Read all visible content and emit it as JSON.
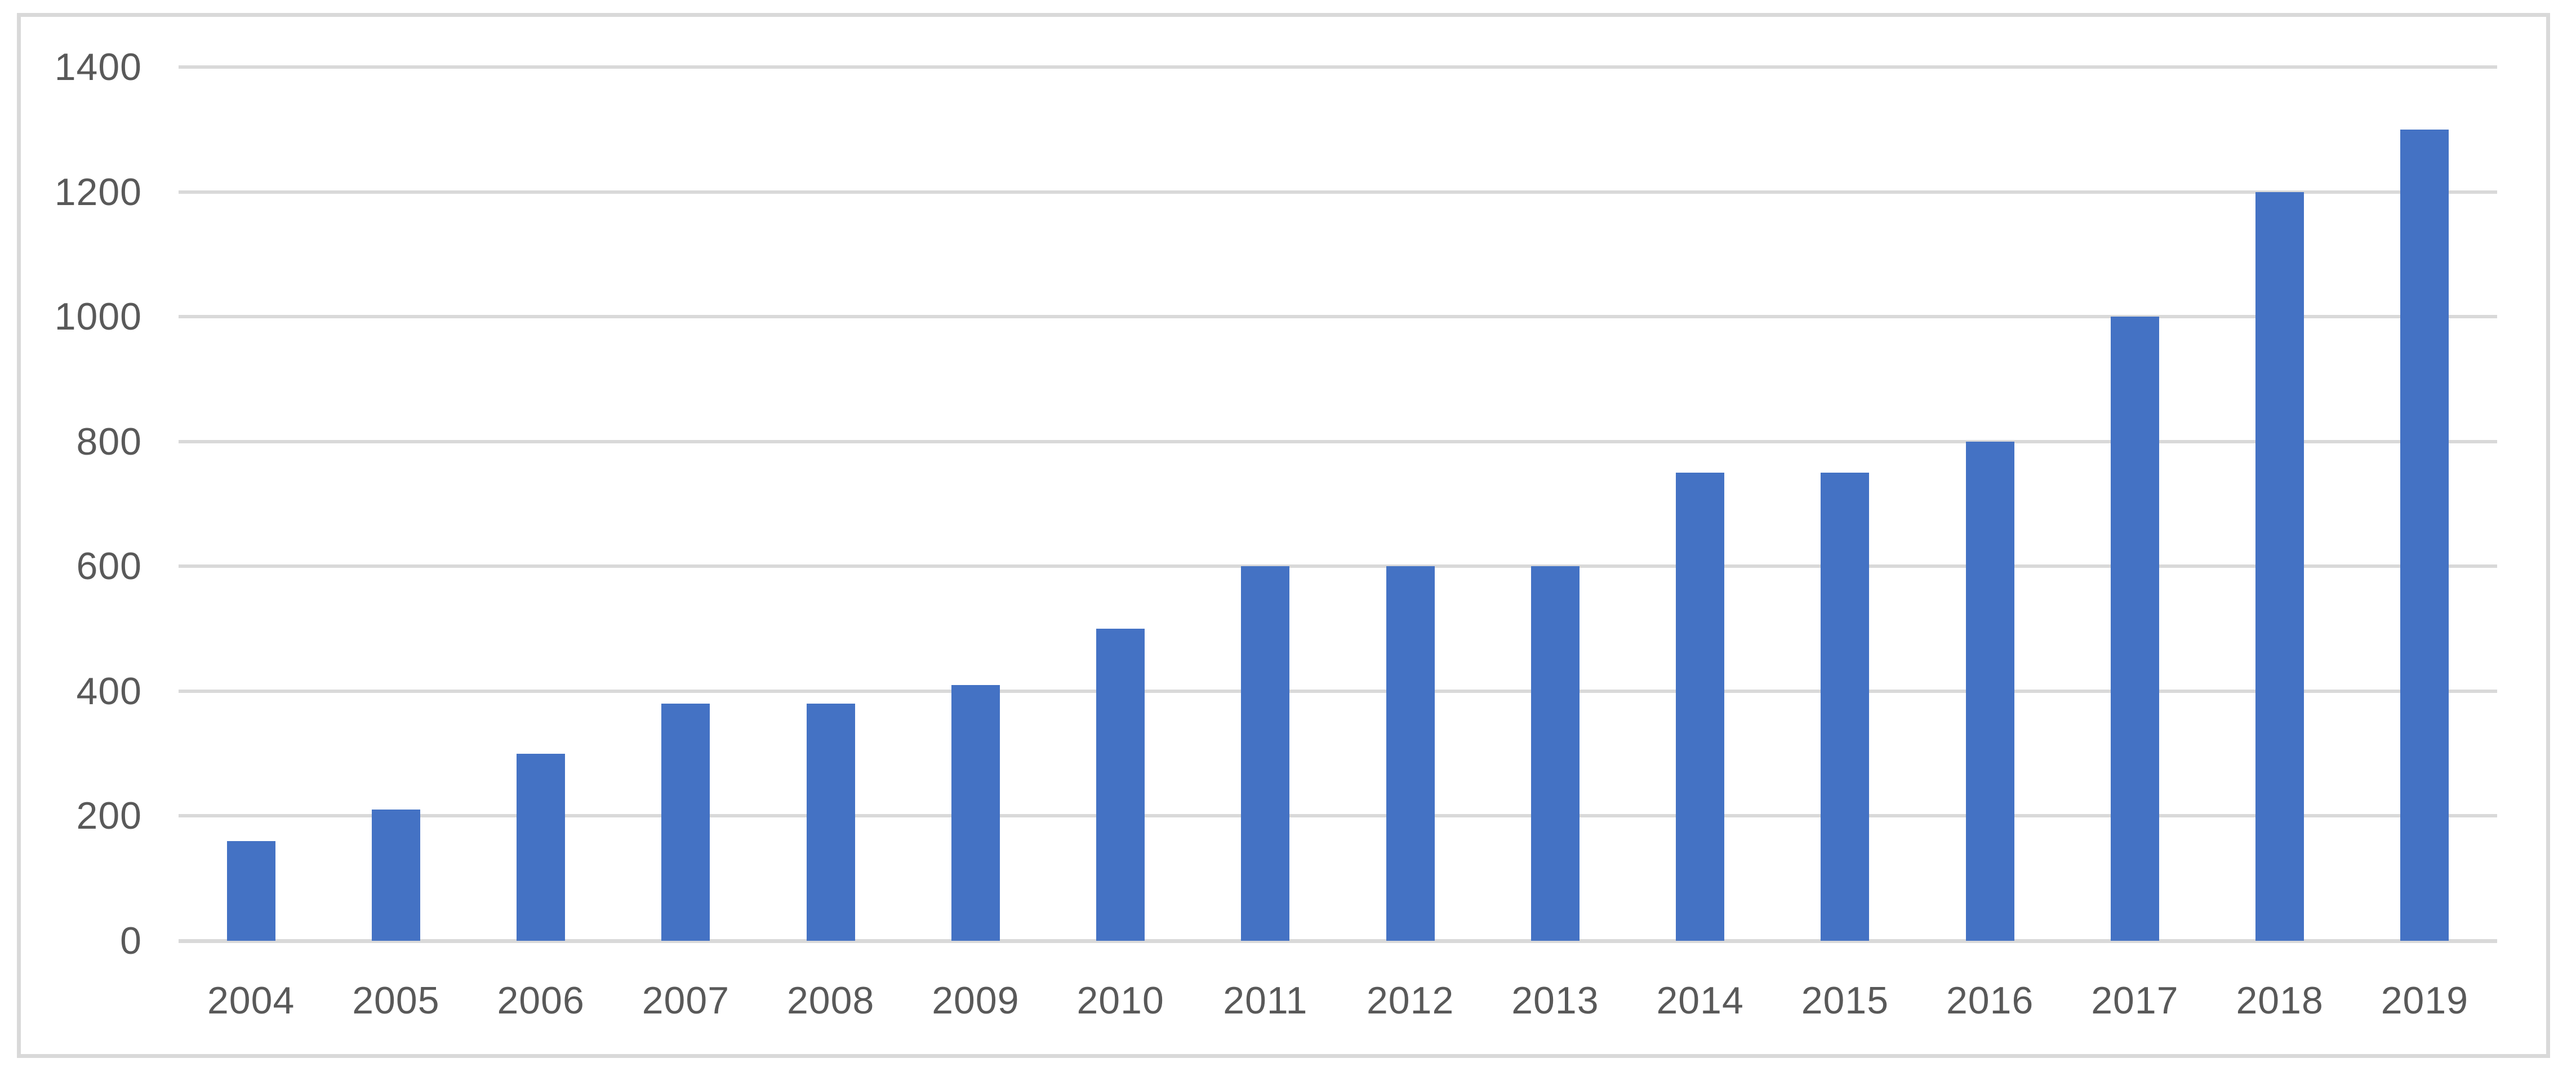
{
  "chart_data": {
    "type": "bar",
    "categories": [
      "2004",
      "2005",
      "2006",
      "2007",
      "2008",
      "2009",
      "2010",
      "2011",
      "2012",
      "2013",
      "2014",
      "2015",
      "2016",
      "2017",
      "2018",
      "2019"
    ],
    "values": [
      160,
      210,
      300,
      380,
      380,
      410,
      500,
      600,
      600,
      600,
      750,
      750,
      800,
      1000,
      1200,
      1300
    ],
    "ylim": [
      0,
      1400
    ],
    "yticks": [
      0,
      200,
      400,
      600,
      800,
      1000,
      1200,
      1400
    ],
    "grid": true,
    "legend": false,
    "bar_color": "#4472C4",
    "gridline_color": "#D9D9D9",
    "chart_border_color": "#D9D9D9",
    "axis_label_color": "#595959",
    "background_color": "#FFFFFF"
  }
}
